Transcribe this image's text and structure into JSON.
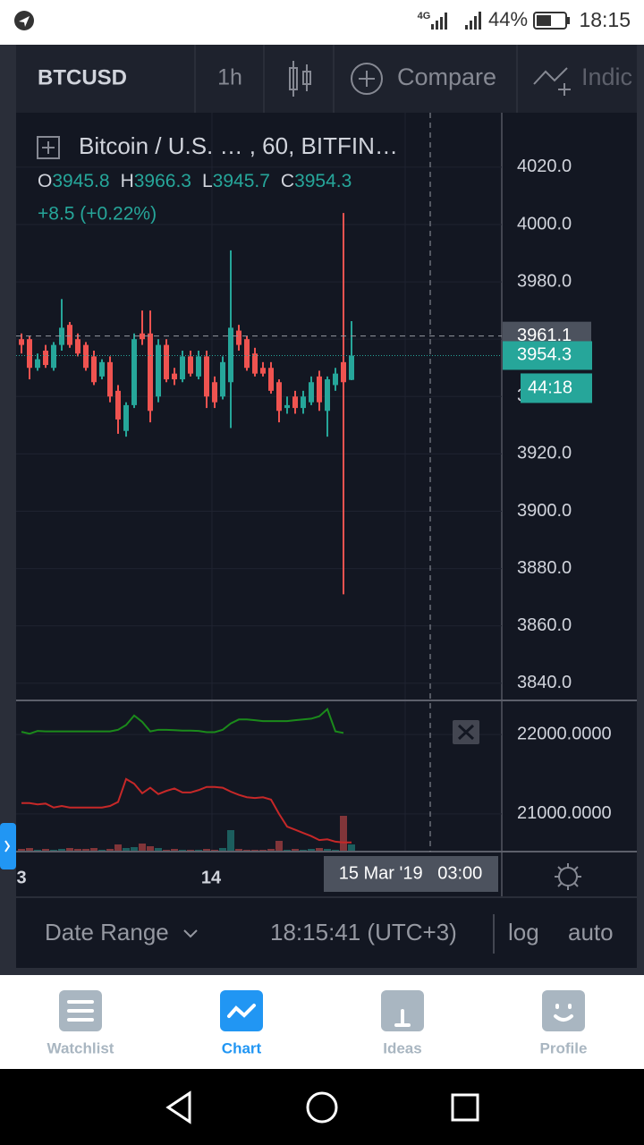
{
  "status_bar": {
    "network": "4G",
    "battery": "44%",
    "time": "18:15"
  },
  "toolbar": {
    "symbol": "BTCUSD",
    "interval": "1h",
    "compare": "Compare",
    "indicators": "Indic"
  },
  "chart_data": {
    "type": "candlestick",
    "legend": {
      "title": "Bitcoin / U.S. …  , 60, BITFIN…",
      "ohlc": [
        {
          "label": "O",
          "value": "3945.8"
        },
        {
          "label": "H",
          "value": "3966.3"
        },
        {
          "label": "L",
          "value": "3945.7"
        },
        {
          "label": "C",
          "value": "3954.3"
        }
      ],
      "change": "+8.5 (+0.22%)"
    },
    "open": [
      3960,
      3960,
      3950,
      3956,
      3950,
      3958,
      3965,
      3960,
      3958,
      3954,
      3947,
      3952,
      3942,
      3928,
      3937,
      3962,
      3962,
      3940,
      3958,
      3948,
      3946,
      3954,
      3947,
      3954,
      3945,
      3940,
      3945,
      3963,
      3960,
      3955,
      3950,
      3950,
      3945,
      3936,
      3940,
      3936,
      3938,
      3947,
      3935,
      3944,
      3952,
      3945.8
    ],
    "high": [
      3962,
      3961,
      3955,
      3958,
      3959,
      3974,
      3966,
      3962,
      3959,
      3956,
      3953,
      3954,
      3944,
      3938,
      3962,
      3970,
      3970,
      3960,
      3960,
      3950,
      3956,
      3956,
      3956,
      3956,
      3947,
      3954,
      3991,
      3965,
      3961,
      3957,
      3952,
      3952,
      3946,
      3940,
      3942,
      3942,
      3947,
      3949,
      3947,
      3950,
      4004,
      3966.3
    ],
    "low": [
      3955,
      3946,
      3949,
      3950,
      3949,
      3956,
      3957,
      3954,
      3949,
      3944,
      3946,
      3938,
      3927,
      3926,
      3936,
      3958,
      3931,
      3938,
      3945,
      3944,
      3945,
      3947,
      3946,
      3936,
      3936,
      3939,
      3929,
      3956,
      3949,
      3947,
      3947,
      3941,
      3931,
      3934,
      3934,
      3934,
      3937,
      3935,
      3926,
      3942,
      3871,
      3945.7
    ],
    "close": [
      3958,
      3950,
      3953,
      3951,
      3958,
      3964,
      3958,
      3955,
      3950,
      3945,
      3952,
      3940,
      3932,
      3937,
      3960,
      3960,
      3935,
      3958,
      3946,
      3946,
      3954,
      3948,
      3954,
      3940,
      3938,
      3952,
      3964,
      3958,
      3950,
      3948,
      3948,
      3942,
      3935,
      3937,
      3936,
      3940,
      3945,
      3938,
      3946,
      3948,
      3945,
      3954.3
    ],
    "ylim": [
      3834,
      4039
    ],
    "yticks": [
      {
        "value": 4020,
        "label": "4020.0"
      },
      {
        "value": 4000,
        "label": "4000.0"
      },
      {
        "value": 3980,
        "label": "3980.0"
      },
      {
        "value": 3960,
        "label": "3960.0"
      },
      {
        "value": 3940,
        "label": "3940.0"
      },
      {
        "value": 3920,
        "label": "3920.0"
      },
      {
        "value": 3900,
        "label": "3900.0"
      },
      {
        "value": 3880,
        "label": "3880.0"
      },
      {
        "value": 3860,
        "label": "3860.0"
      },
      {
        "value": 3840,
        "label": "3840.0"
      }
    ],
    "up_color": "#26a69a",
    "down_color": "#ef5350",
    "crosshair_price": {
      "value": 3961.1,
      "label": "3961.1"
    },
    "last_price": {
      "value": 3954.3,
      "label": "3954.3"
    },
    "countdown": "44:18",
    "indicator": {
      "y2lim": [
        20525,
        22430
      ],
      "y2ticks": [
        {
          "value": 22000,
          "label": "22000.0000"
        },
        {
          "value": 21000,
          "label": "21000.0000"
        }
      ],
      "series": [
        {
          "color": "#1b8a1b",
          "axis": "y2",
          "values": [
            22034,
            22010,
            22045,
            22040,
            22040,
            22040,
            22040,
            22040,
            22040,
            22040,
            22040,
            22040,
            22060,
            22120,
            22240,
            22160,
            22040,
            22060,
            22060,
            22055,
            22050,
            22050,
            22045,
            22030,
            22030,
            22060,
            22140,
            22190,
            22190,
            22180,
            22170,
            22170,
            22170,
            22170,
            22180,
            22190,
            22200,
            22230,
            22320,
            22040,
            22020,
            null
          ]
        },
        {
          "color": "#c62828",
          "axis": "y2",
          "values": [
            21136,
            21136,
            21120,
            21130,
            21080,
            21100,
            21080,
            21080,
            21080,
            21080,
            21080,
            21100,
            21150,
            21440,
            21380,
            21260,
            21330,
            21250,
            21290,
            21320,
            21270,
            21270,
            21300,
            21340,
            21340,
            21330,
            21280,
            21240,
            21210,
            21200,
            21210,
            21180,
            21000,
            20840,
            20800,
            20760,
            20720,
            20670,
            20680,
            20650,
            20640,
            20640
          ]
        }
      ],
      "volume": [
        3,
        4,
        2,
        3,
        2,
        3,
        4,
        3,
        3,
        4,
        2,
        3,
        8,
        4,
        5,
        9,
        6,
        4,
        2,
        3,
        2,
        2,
        2,
        3,
        2,
        4,
        24,
        3,
        2,
        2,
        2,
        3,
        12,
        2,
        3,
        2,
        3,
        4,
        3,
        2,
        40,
        8
      ]
    },
    "xticks": [
      "3",
      "14"
    ],
    "crosshair_time": "15 Mar '19   03:00"
  },
  "bottom_bar": {
    "date_range": "Date Range",
    "clock": "18:15:41 (UTC+3)",
    "log": "log",
    "auto": "auto"
  },
  "nav": [
    "Watchlist",
    "Chart",
    "Ideas",
    "Profile"
  ]
}
